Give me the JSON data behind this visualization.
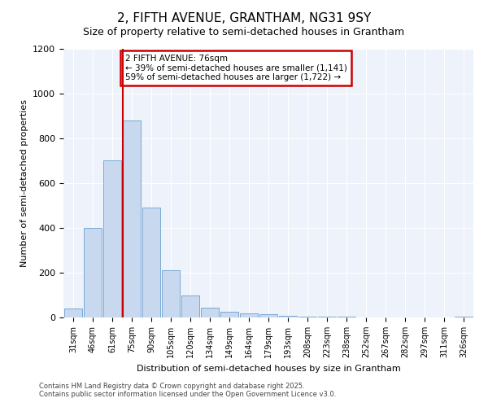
{
  "title": "2, FIFTH AVENUE, GRANTHAM, NG31 9SY",
  "subtitle": "Size of property relative to semi-detached houses in Grantham",
  "xlabel": "Distribution of semi-detached houses by size in Grantham",
  "ylabel": "Number of semi-detached properties",
  "categories": [
    "31sqm",
    "46sqm",
    "61sqm",
    "75sqm",
    "90sqm",
    "105sqm",
    "120sqm",
    "134sqm",
    "149sqm",
    "164sqm",
    "179sqm",
    "193sqm",
    "208sqm",
    "223sqm",
    "238sqm",
    "252sqm",
    "267sqm",
    "282sqm",
    "297sqm",
    "311sqm",
    "326sqm"
  ],
  "values": [
    40,
    400,
    700,
    880,
    490,
    210,
    100,
    45,
    25,
    20,
    15,
    8,
    5,
    3,
    2,
    1,
    1,
    1,
    1,
    1,
    3
  ],
  "bar_color": "#c8d8ee",
  "bar_edge_color": "#7aaad4",
  "vline_x": 2.55,
  "vline_color": "#cc0000",
  "annotation_title": "2 FIFTH AVENUE: 76sqm",
  "annotation_line1": "← 39% of semi-detached houses are smaller (1,141)",
  "annotation_line2": "59% of semi-detached houses are larger (1,722) →",
  "annotation_box_color": "#cc0000",
  "ylim": [
    0,
    1200
  ],
  "yticks": [
    0,
    200,
    400,
    600,
    800,
    1000,
    1200
  ],
  "footer_line1": "Contains HM Land Registry data © Crown copyright and database right 2025.",
  "footer_line2": "Contains public sector information licensed under the Open Government Licence v3.0.",
  "bg_color": "#ffffff",
  "plot_bg_color": "#eef2fb",
  "grid_color": "#ffffff",
  "title_fontsize": 11,
  "subtitle_fontsize": 9,
  "tick_fontsize": 7,
  "label_fontsize": 8,
  "footer_fontsize": 6
}
